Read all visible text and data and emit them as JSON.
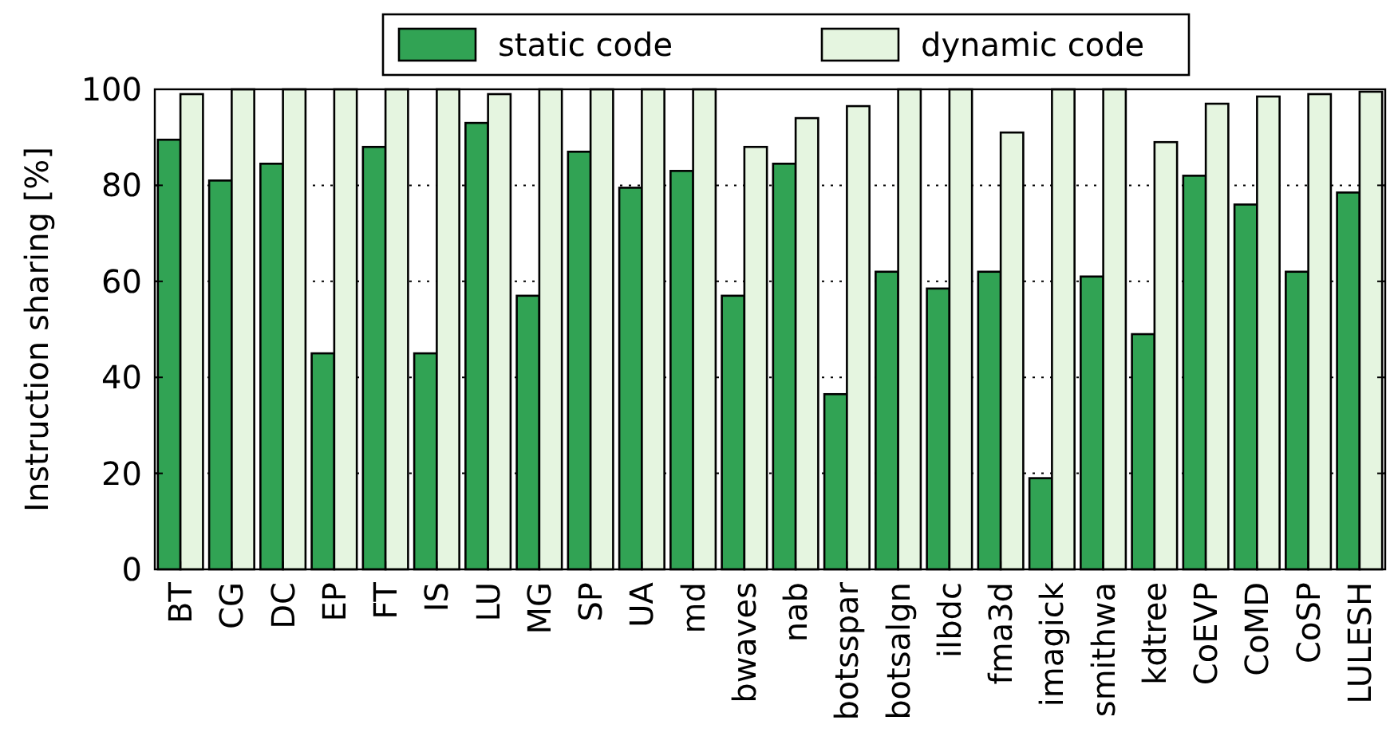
{
  "chart_data": {
    "type": "bar",
    "ylabel": "Instruction sharing [%]",
    "categories": [
      "BT",
      "CG",
      "DC",
      "EP",
      "FT",
      "IS",
      "LU",
      "MG",
      "SP",
      "UA",
      "md",
      "bwaves",
      "nab",
      "botsspar",
      "botsalgn",
      "ilbdc",
      "fma3d",
      "imagick",
      "smithwa",
      "kdtree",
      "CoEVP",
      "CoMD",
      "CoSP",
      "LULESH"
    ],
    "series": [
      {
        "name": "static code",
        "color": "#31a354",
        "values": [
          89.5,
          81,
          84.5,
          45,
          88,
          45,
          93,
          57,
          87,
          79.5,
          83,
          57,
          84.5,
          36.5,
          62,
          58.5,
          62,
          19,
          61,
          49,
          82,
          76,
          62,
          78.5
        ]
      },
      {
        "name": "dynamic code",
        "color": "#e5f5e0",
        "values": [
          99,
          100,
          100,
          100,
          100,
          100,
          99,
          100,
          100,
          100,
          100,
          88,
          94,
          96.5,
          100,
          100,
          91,
          100,
          100,
          89,
          97,
          98.5,
          99,
          99.5
        ]
      }
    ],
    "ylim": [
      0,
      100
    ],
    "yticks": [
      0,
      20,
      40,
      60,
      80,
      100
    ],
    "grid": "y",
    "legend": "top"
  }
}
